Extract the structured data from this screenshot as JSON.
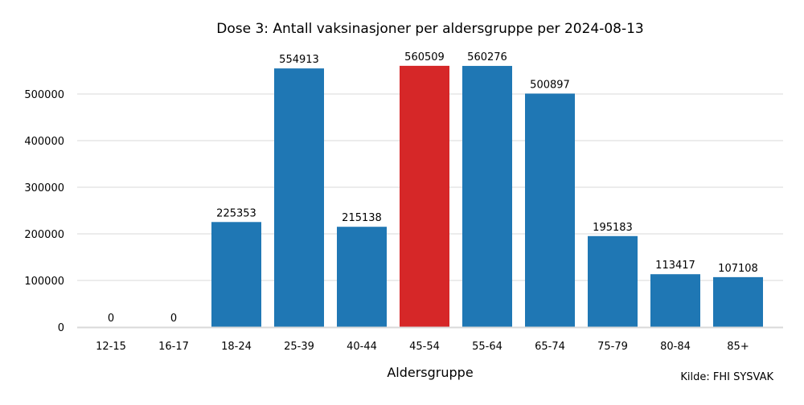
{
  "chart_data": {
    "type": "bar",
    "title": "Dose 3: Antall vaksinasjoner per aldersgruppe per 2024-08-13",
    "xlabel": "Aldersgruppe",
    "ylabel": "",
    "categories": [
      "12-15",
      "16-17",
      "18-24",
      "25-39",
      "40-44",
      "45-54",
      "55-64",
      "65-74",
      "75-79",
      "80-84",
      "85+"
    ],
    "values": [
      0,
      0,
      225353,
      554913,
      215138,
      560509,
      560276,
      500897,
      195183,
      113417,
      107108
    ],
    "data_labels": [
      "0",
      "0",
      "225353",
      "554913",
      "215138",
      "560509",
      "560276",
      "500897",
      "195183",
      "113417",
      "107108"
    ],
    "highlight_category": "45-54",
    "y_ticks": [
      0,
      100000,
      200000,
      300000,
      400000,
      500000
    ],
    "y_tick_labels": [
      "0",
      "100000",
      "200000",
      "300000",
      "400000",
      "500000"
    ],
    "ylim": [
      0,
      600000
    ],
    "grid": true,
    "legend": "none",
    "colors": {
      "bar": "#1f77b4",
      "highlight": "#d62728",
      "grid": "#e6e6e6",
      "axis": "#d9d9d9"
    }
  },
  "source_note": "Kilde: FHI SYSVAK"
}
